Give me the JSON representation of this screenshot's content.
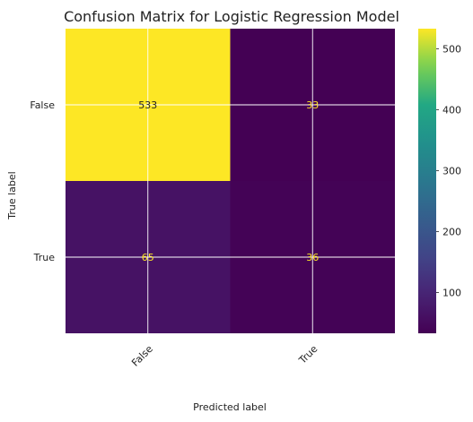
{
  "chart_data": {
    "type": "heatmap",
    "title": "Confusion Matrix for Logistic Regression Model",
    "xlabel": "Predicted label",
    "ylabel": "True label",
    "x_categories": [
      "False",
      "True"
    ],
    "y_categories": [
      "False",
      "True"
    ],
    "values": [
      [
        533,
        33
      ],
      [
        65,
        36
      ]
    ],
    "colormap": "viridis",
    "colorbar": {
      "ticks": [
        100,
        200,
        300,
        400,
        500
      ],
      "range": [
        33,
        533
      ]
    },
    "grid": true,
    "x_tick_rotation": 45
  },
  "colors": {
    "text_on_dark": "#fde725",
    "text_on_light": "#222222",
    "grid": "#ffffff",
    "label": "#222222"
  }
}
